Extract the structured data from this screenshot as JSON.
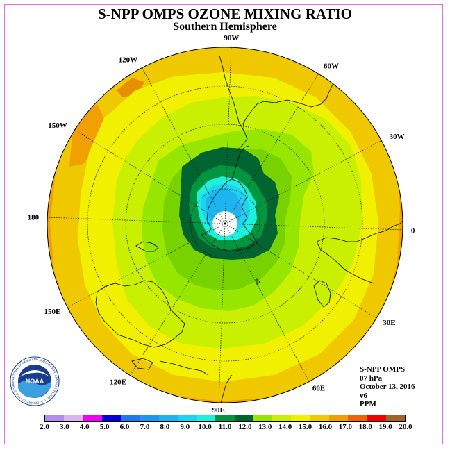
{
  "header": {
    "title": "S-NPP OMPS OZONE MIXING RATIO",
    "subtitle": "Southern Hemisphere"
  },
  "map": {
    "projection": "polar stereographic, south pole",
    "longitude_labels": [
      {
        "text": "0",
        "lon": 0
      },
      {
        "text": "30E",
        "lon": 30
      },
      {
        "text": "60E",
        "lon": 60
      },
      {
        "text": "90E",
        "lon": 90
      },
      {
        "text": "120E",
        "lon": 120
      },
      {
        "text": "150E",
        "lon": 150
      },
      {
        "text": "180",
        "lon": 180
      },
      {
        "text": "150W",
        "lon": -150
      },
      {
        "text": "120W",
        "lon": -120
      },
      {
        "text": "90W",
        "lon": -90
      },
      {
        "text": "60W",
        "lon": -60
      },
      {
        "text": "30W",
        "lon": -30
      }
    ],
    "latitude_circles": [
      -30,
      -60,
      -80
    ]
  },
  "info": {
    "instrument": "S-NPP OMPS",
    "level": "07 hPa",
    "date": "October 13, 2016",
    "version": "v6",
    "units": "PPM"
  },
  "colorbar": {
    "ticks": [
      "2.0",
      "3.0",
      "4.0",
      "5.0",
      "6.0",
      "7.0",
      "8.0",
      "9.0",
      "10.0",
      "11.0",
      "12.0",
      "13.0",
      "14.0",
      "15.0",
      "16.0",
      "17.0",
      "18.0",
      "19.0",
      "20.0"
    ],
    "colors": [
      "#b48cf0",
      "#dcb4f0",
      "#f000f0",
      "#0000dc",
      "#1e78f0",
      "#1e96f0",
      "#1eb4f0",
      "#1ed2f0",
      "#1ef0dc",
      "#009640",
      "#006430",
      "#96e600",
      "#c8f000",
      "#f0f000",
      "#f0c800",
      "#f0a000",
      "#f06400",
      "#f00000",
      "#a06428"
    ]
  },
  "logo": {
    "name": "noaa-logo",
    "text": "NOAA",
    "ring_text": "NATIONAL OCEANIC AND ATMOSPHERIC ADMINISTRATION · U.S. DEPARTMENT OF COMMERCE"
  }
}
